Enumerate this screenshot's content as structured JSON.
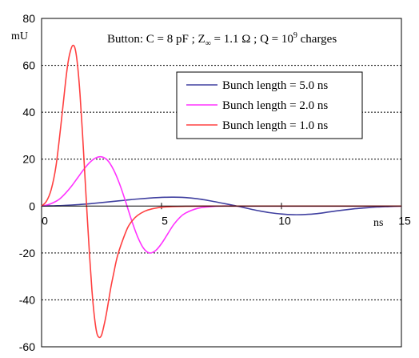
{
  "chart_data": {
    "type": "line",
    "title_parts": {
      "prefix": "Button:  C = 8 pF ; Z",
      "sub": "∞",
      "mid": " = 1.1 Ω ; Q = 10",
      "sup": "9",
      "suffix": " charges"
    },
    "ylabel": "mU",
    "xlabel": "ns",
    "xlim": [
      0,
      15
    ],
    "ylim": [
      -60,
      80
    ],
    "x_ticks": [
      "0",
      "5",
      "10",
      "15"
    ],
    "y_ticks": [
      "-60",
      "-40",
      "-20",
      "0",
      "20",
      "40",
      "60",
      "80"
    ],
    "grid": "horizontal dashed",
    "legend_position": "top-right",
    "series": [
      {
        "name": "Bunch length = 5.0 ns",
        "color": "#4040a0",
        "x": [
          0,
          0.5,
          1,
          1.5,
          2,
          2.5,
          3,
          3.5,
          4,
          4.5,
          5,
          5.5,
          6,
          6.5,
          7,
          7.5,
          8,
          8.5,
          9,
          9.5,
          10,
          10.5,
          11,
          11.5,
          12,
          12.5,
          13,
          13.5,
          14,
          14.5,
          15
        ],
        "y": [
          0,
          0.1,
          0.3,
          0.6,
          1.0,
          1.5,
          2.0,
          2.5,
          3.0,
          3.4,
          3.7,
          3.8,
          3.6,
          3.1,
          2.3,
          1.3,
          0.3,
          -0.8,
          -1.9,
          -2.8,
          -3.4,
          -3.7,
          -3.6,
          -3.2,
          -2.5,
          -1.8,
          -1.2,
          -0.8,
          -0.4,
          -0.2,
          0
        ]
      },
      {
        "name": "Bunch length = 2.0 ns",
        "color": "#ff33ff",
        "x": [
          0,
          0.25,
          0.5,
          0.75,
          1,
          1.25,
          1.5,
          1.75,
          2,
          2.25,
          2.5,
          2.75,
          3,
          3.25,
          3.5,
          3.75,
          4,
          4.25,
          4.5,
          4.75,
          5,
          5.25,
          5.5,
          5.75,
          6,
          6.5,
          7,
          7.5,
          8,
          10,
          15
        ],
        "y": [
          0,
          0.5,
          1.5,
          3,
          5.5,
          8.5,
          12,
          15.5,
          18.5,
          20.5,
          21,
          19.5,
          15.5,
          9.5,
          2,
          -6,
          -13,
          -18,
          -20,
          -19,
          -16,
          -12,
          -8,
          -5,
          -3,
          -1,
          -0.3,
          0,
          0,
          0,
          0
        ]
      },
      {
        "name": "Bunch length = 1.0 ns",
        "color": "#ff4040",
        "x": [
          0,
          0.2,
          0.4,
          0.6,
          0.8,
          1.0,
          1.1,
          1.2,
          1.3,
          1.4,
          1.5,
          1.6,
          1.7,
          1.8,
          1.9,
          2.0,
          2.1,
          2.2,
          2.3,
          2.4,
          2.5,
          2.6,
          2.7,
          2.8,
          2.9,
          3.0,
          3.1,
          3.2,
          3.4,
          3.6,
          3.8,
          4.0,
          4.3,
          4.6,
          5.0,
          5.5,
          6.0,
          7.0,
          8.0,
          10.0,
          15.0
        ],
        "y": [
          0,
          2,
          7,
          17,
          34,
          53,
          61,
          66,
          68.5,
          67,
          60,
          48,
          32,
          14,
          -4,
          -21,
          -36,
          -47,
          -54,
          -56,
          -55,
          -51,
          -46,
          -40,
          -34,
          -29,
          -24,
          -20,
          -14,
          -9,
          -6,
          -4,
          -2.2,
          -1.2,
          -0.5,
          -0.2,
          -0.1,
          0,
          0,
          0,
          0
        ]
      }
    ]
  }
}
